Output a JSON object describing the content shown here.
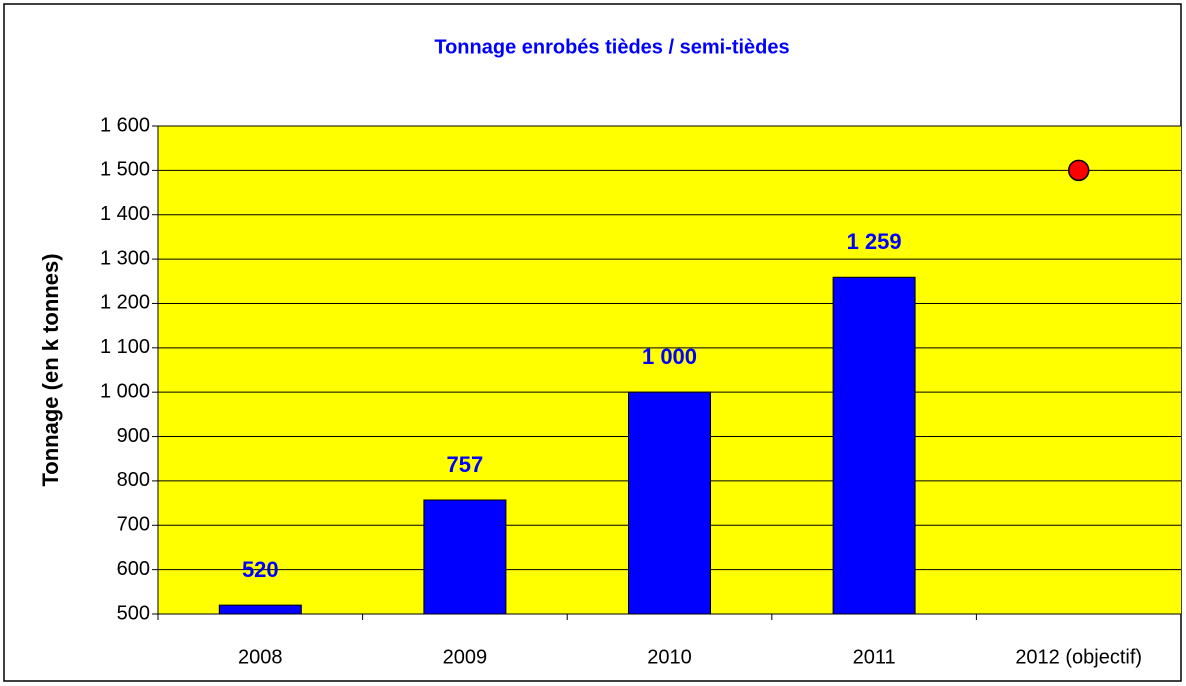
{
  "chart_data": {
    "type": "bar",
    "title": "Tonnage enrobés tièdes / semi-tièdes",
    "y_label": "Tonnage (en k tonnes)",
    "categories": [
      "2008",
      "2009",
      "2010",
      "2011",
      "2012 (objectif)"
    ],
    "series": [
      {
        "type": "bar",
        "color": "#0000ff",
        "values": [
          520,
          757,
          1000,
          1259,
          null
        ],
        "value_labels": [
          "520",
          "757",
          "1 000",
          "1 259",
          null
        ]
      },
      {
        "type": "marker",
        "color": "#ff0000",
        "values": [
          null,
          null,
          null,
          null,
          1500
        ]
      }
    ],
    "ylim": [
      500,
      1600
    ],
    "yticks": [
      500,
      600,
      700,
      800,
      900,
      {
        "value": 1000,
        "label": "1 000"
      },
      {
        "value": 1100,
        "label": "1 100"
      },
      {
        "value": 1200,
        "label": "1 200"
      },
      {
        "value": 1300,
        "label": "1 300"
      },
      {
        "value": 1400,
        "label": "1 400"
      },
      {
        "value": 1500,
        "label": "1 500"
      },
      {
        "value": 1600,
        "label": "1 600"
      }
    ],
    "grid": true,
    "plot_background": "#ffff00"
  }
}
